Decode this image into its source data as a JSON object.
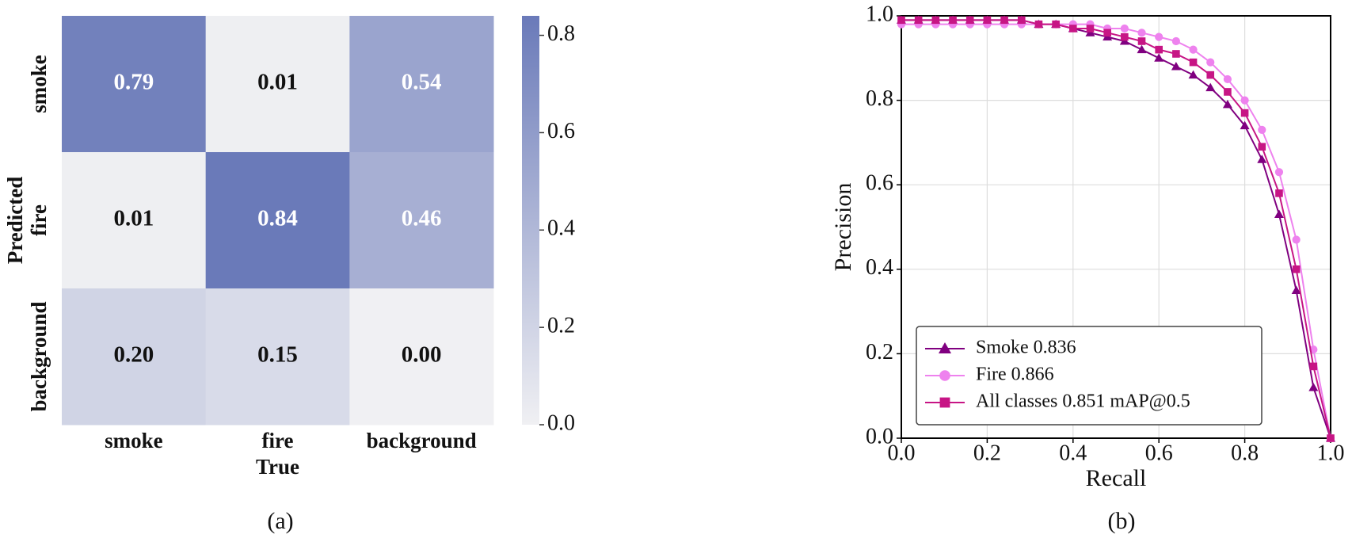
{
  "chart_data": [
    {
      "type": "heatmap",
      "x_label": "True",
      "y_label": "Predicted",
      "x_categories": [
        "smoke",
        "fire",
        "background"
      ],
      "y_categories": [
        "smoke",
        "fire",
        "background"
      ],
      "values": [
        [
          0.79,
          0.01,
          0.54
        ],
        [
          0.01,
          0.84,
          0.46
        ],
        [
          0.2,
          0.15,
          0.0
        ]
      ],
      "value_labels": [
        [
          "0.79",
          "0.01",
          "0.54"
        ],
        [
          "0.01",
          "0.84",
          "0.46"
        ],
        [
          "0.20",
          "0.15",
          "0.00"
        ]
      ],
      "colors": [
        "#f0f0f3",
        "#6a7ab9"
      ],
      "colorbar_lim": [
        0,
        0.84
      ],
      "colorbar_ticks": [
        {
          "value": 0,
          "label": "0.0"
        },
        0.2,
        0.4,
        0.6,
        0.8
      ],
      "caption": "(a)"
    },
    {
      "type": "line",
      "x_label": "Recall",
      "y_label": "Precision",
      "x": [
        0,
        0.04,
        0.08,
        0.12,
        0.16,
        0.2,
        0.24,
        0.28,
        0.32,
        0.36,
        0.4,
        0.44,
        0.48,
        0.52,
        0.56,
        0.6,
        0.64,
        0.68,
        0.72,
        0.76,
        0.8,
        0.84,
        0.88,
        0.92,
        0.96,
        1.0
      ],
      "series": [
        {
          "name": "Smoke 0.836",
          "color": "#800080",
          "marker": "triangle",
          "values": [
            0.99,
            0.99,
            0.99,
            0.99,
            0.99,
            0.99,
            0.99,
            0.99,
            0.98,
            0.98,
            0.97,
            0.96,
            0.95,
            0.94,
            0.92,
            0.9,
            0.88,
            0.86,
            0.83,
            0.79,
            0.74,
            0.66,
            0.53,
            0.35,
            0.12,
            0
          ]
        },
        {
          "name": "Fire 0.866",
          "color": "#ee82ee",
          "marker": "circle",
          "values": [
            0.98,
            0.98,
            0.98,
            0.98,
            0.98,
            0.98,
            0.98,
            0.98,
            0.98,
            0.98,
            0.98,
            0.98,
            0.97,
            0.97,
            0.96,
            0.95,
            0.94,
            0.92,
            0.89,
            0.85,
            0.8,
            0.73,
            0.63,
            0.47,
            0.21,
            0
          ]
        },
        {
          "name": "All classes 0.851 mAP@0.5",
          "color": "#c71585",
          "marker": "square",
          "values": [
            0.99,
            0.99,
            0.99,
            0.99,
            0.99,
            0.99,
            0.99,
            0.99,
            0.98,
            0.98,
            0.97,
            0.97,
            0.96,
            0.95,
            0.94,
            0.92,
            0.91,
            0.89,
            0.86,
            0.82,
            0.77,
            0.69,
            0.58,
            0.4,
            0.17,
            0
          ]
        }
      ],
      "xlim": [
        0,
        1
      ],
      "ylim": [
        0,
        1
      ],
      "xticks": [
        {
          "value": 0,
          "label": "0.0"
        },
        0.2,
        0.4,
        0.6,
        0.8,
        {
          "value": 1,
          "label": "1.0"
        }
      ],
      "yticks": [
        {
          "value": 0,
          "label": "0.0"
        },
        0.2,
        0.4,
        0.6,
        0.8,
        {
          "value": 1,
          "label": "1.0"
        }
      ],
      "grid": true,
      "legend": "lower left",
      "caption": "(b)"
    }
  ]
}
